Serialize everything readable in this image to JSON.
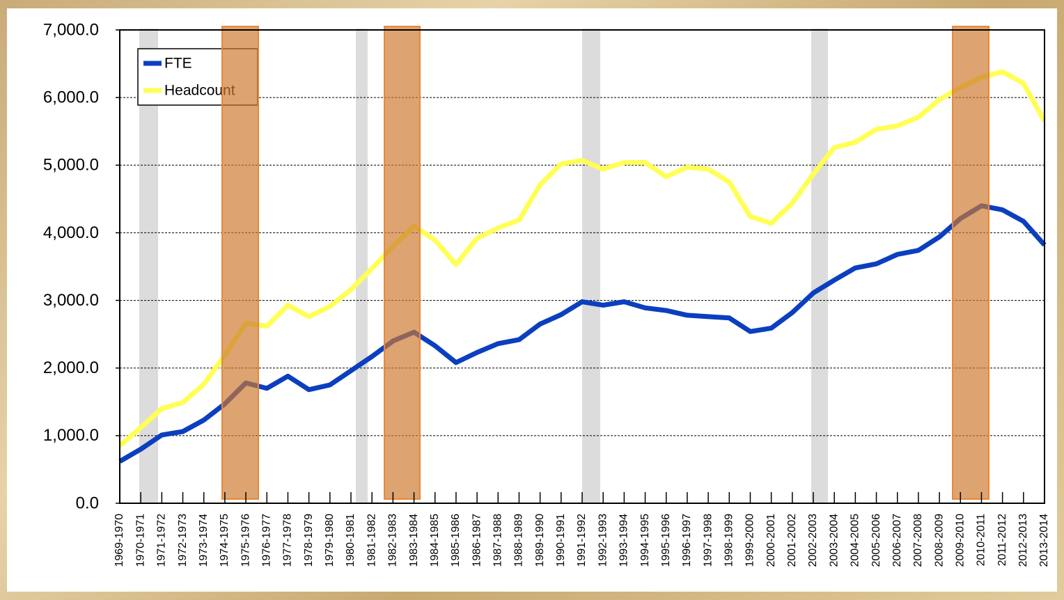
{
  "chart_data": {
    "type": "line",
    "categories": [
      "1969-1970",
      "1970-1971",
      "1971-1972",
      "1972-1973",
      "1973-1974",
      "1974-1975",
      "1975-1976",
      "1976-1977",
      "1977-1978",
      "1978-1979",
      "1979-1980",
      "1980-1981",
      "1981-1982",
      "1982-1983",
      "1983-1984",
      "1984-1985",
      "1985-1986",
      "1986-1987",
      "1987-1988",
      "1988-1989",
      "1989-1990",
      "1990-1991",
      "1991-1992",
      "1992-1993",
      "1993-1994",
      "1994-1995",
      "1995-1996",
      "1996-1997",
      "1997-1998",
      "1998-1999",
      "1999-2000",
      "2000-2001",
      "2001-2002",
      "2002-2003",
      "2003-2004",
      "2004-2005",
      "2005-2006",
      "2006-2007",
      "2007-2008",
      "2008-2009",
      "2009-2010",
      "2010-2011",
      "2011-2012",
      "2012-2013",
      "2013-2014"
    ],
    "series": [
      {
        "name": "FTE",
        "color": "#0b3fc0",
        "values": [
          620,
          800,
          1010,
          1060,
          1230,
          1470,
          1780,
          1700,
          1880,
          1680,
          1750,
          1960,
          2170,
          2400,
          2530,
          2330,
          2080,
          2230,
          2360,
          2420,
          2650,
          2790,
          2980,
          2930,
          2980,
          2890,
          2850,
          2780,
          2760,
          2740,
          2540,
          2590,
          2820,
          3110,
          3300,
          3480,
          3540,
          3680,
          3740,
          3940,
          4210,
          4400,
          4340,
          4170,
          3820
        ]
      },
      {
        "name": "Headcount",
        "color": "#ffff55",
        "values": [
          850,
          1120,
          1400,
          1490,
          1760,
          2190,
          2660,
          2620,
          2930,
          2760,
          2910,
          3160,
          3470,
          3800,
          4100,
          3890,
          3530,
          3920,
          4070,
          4190,
          4710,
          5020,
          5070,
          4940,
          5040,
          5040,
          4830,
          4970,
          4940,
          4750,
          4240,
          4140,
          4440,
          4870,
          5260,
          5340,
          5530,
          5580,
          5710,
          5970,
          6150,
          6300,
          6380,
          6210,
          5650
        ]
      }
    ],
    "ylim": [
      0,
      7000
    ],
    "yticks": [
      {
        "value": 0,
        "label": "0.0"
      },
      {
        "value": 1000,
        "label": "1,000.0"
      },
      {
        "value": 2000,
        "label": "2,000.0"
      },
      {
        "value": 3000,
        "label": "3,000.0"
      },
      {
        "value": 4000,
        "label": "4,000.0"
      },
      {
        "value": 5000,
        "label": "5,000.0"
      },
      {
        "value": 6000,
        "label": "6,000.0"
      },
      {
        "value": 7000,
        "label": "7,000.0"
      }
    ],
    "grid": true,
    "legend": "top-left"
  }
}
